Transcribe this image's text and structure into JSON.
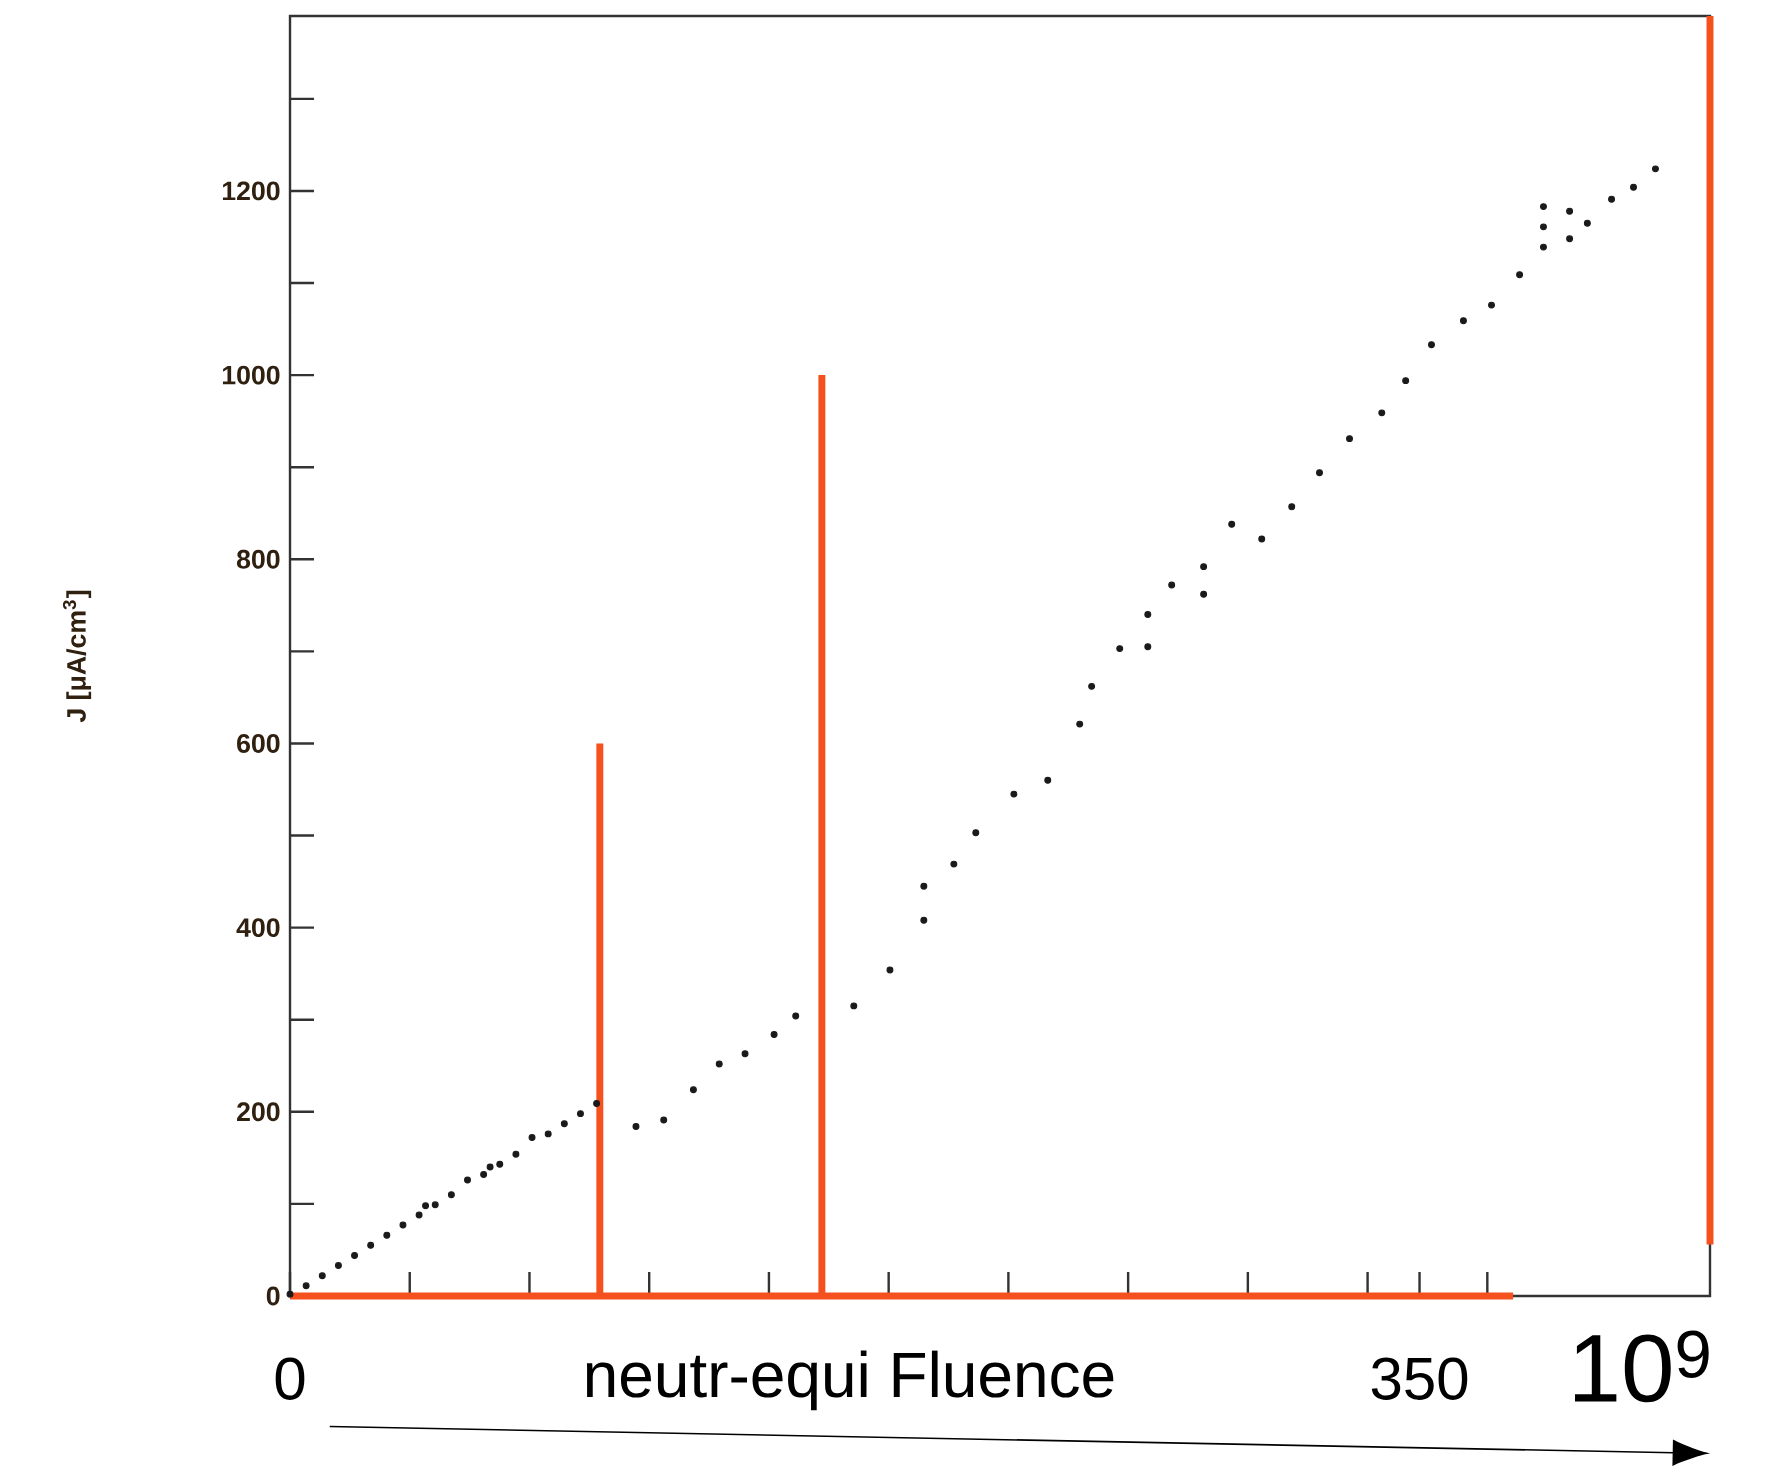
{
  "chart_data": {
    "type": "scatter",
    "xlabel": "neutr-equi Fluence",
    "ylabel": "J [μA/cm$^{3}$]",
    "annotations": [
      "10$^{9}$"
    ],
    "xlim": [
      0,
      440
    ],
    "ylim": [
      0,
      1390
    ],
    "xticks": [
      {
        "value": 0,
        "label": "0"
      },
      {
        "value": 37.1,
        "label": null
      },
      {
        "value": 74.2,
        "label": null
      },
      {
        "value": 111.3,
        "label": null
      },
      {
        "value": 148.4,
        "label": null
      },
      {
        "value": 185.5,
        "label": null
      },
      {
        "value": 222.6,
        "label": null
      },
      {
        "value": 259.7,
        "label": null
      },
      {
        "value": 296.8,
        "label": null
      },
      {
        "value": 333.9,
        "label": null
      },
      {
        "value": 350,
        "label": "350"
      },
      {
        "value": 371,
        "label": null
      }
    ],
    "yticks": [
      0,
      {
        "value": 100,
        "label": null
      },
      200,
      {
        "value": 300,
        "label": null
      },
      400,
      {
        "value": 500,
        "label": null
      },
      600,
      {
        "value": 700,
        "label": null
      },
      800,
      {
        "value": 900,
        "label": null
      },
      1000,
      {
        "value": 1100,
        "label": null
      },
      1200,
      {
        "value": 1300,
        "label": null
      }
    ],
    "series": [
      {
        "marker": "circle",
        "color": "#1a1a1a",
        "x": [
          0,
          5,
          10,
          15,
          20,
          25,
          30,
          35,
          40,
          42,
          45,
          50,
          55,
          60,
          62,
          65,
          70,
          75,
          80,
          85,
          90,
          95,
          107.2,
          115.8,
          125,
          133,
          141,
          150,
          156.7,
          174.7,
          185.9,
          196.4,
          196.4,
          205.7,
          212.5,
          224.3,
          234.8,
          244.7,
          248.4,
          257.1,
          265.8,
          265.8,
          273.2,
          283.1,
          283.1,
          291.8,
          301.1,
          310.4,
          319,
          328.3,
          338.3,
          345.7,
          353.7,
          363.6,
          372.3,
          381,
          388.4,
          388.4,
          388.4,
          396.5,
          396.5,
          402,
          409.5,
          416.3,
          423.1
        ],
        "values": [
          2,
          11,
          22,
          33,
          44,
          55,
          66,
          77,
          88,
          98,
          99,
          110,
          126,
          132,
          140,
          143,
          154,
          172,
          176,
          187,
          198,
          209,
          184,
          191,
          224,
          252,
          263,
          284,
          304,
          315,
          354,
          408,
          445,
          469,
          503,
          545,
          560,
          621,
          662,
          703,
          705,
          740,
          772,
          762,
          792,
          838,
          822,
          857,
          894,
          931,
          959,
          994,
          1033,
          1059,
          1076,
          1109,
          1139,
          1161,
          1183,
          1148,
          1178,
          1165,
          1191,
          1204,
          1224
        ]
      },
      {
        "type": "line",
        "marker": "none",
        "color": "#f4511e",
        "x": [
          0,
          379
        ],
        "values": [
          0,
          0
        ]
      },
      {
        "type": "line",
        "marker": "none",
        "color": "#f4511e",
        "x": [
          96,
          96
        ],
        "values": [
          0,
          600
        ]
      },
      {
        "type": "line",
        "marker": "none",
        "color": "#f4511e",
        "x": [
          164.8,
          164.8
        ],
        "values": [
          0,
          1000
        ]
      },
      {
        "type": "line",
        "marker": "none",
        "color": "#f4511e",
        "x": [
          440,
          440
        ],
        "values": [
          56,
          1390
        ]
      }
    ]
  }
}
